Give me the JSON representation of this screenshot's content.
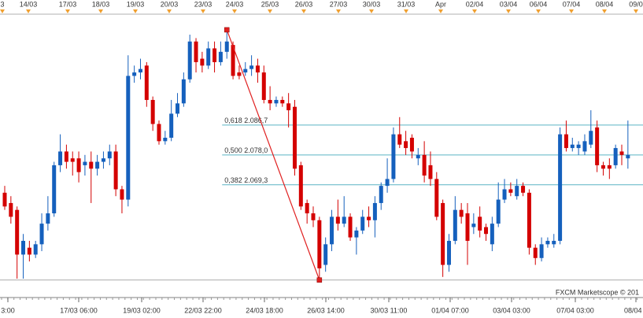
{
  "chart_data": {
    "type": "candlestick",
    "ylim": [
      2036.5,
      2118.5
    ],
    "up_color": "#1560bd",
    "down_color": "#d40000",
    "top_axis_labels": [
      "3",
      "14/03",
      "17/03",
      "18/03",
      "19/03",
      "20/03",
      "23/03",
      "24/03",
      "25/03",
      "26/03",
      "27/03",
      "30/03",
      "31/03",
      "Apr",
      "02/04",
      "03/04",
      "06/04",
      "07/04",
      "08/04",
      "09/0"
    ],
    "bottom_axis_labels": [
      "3:00",
      "17/03 06:00",
      "19/03 02:00",
      "22/03 22:00",
      "24/03 18:00",
      "26/03 14:00",
      "30/03 11:00",
      "01/04 07:00",
      "03/04 03:00",
      "07/04 03:00",
      "08/04 2"
    ],
    "watermark": "FXCM Marketscope © 201",
    "fibonacci": {
      "color": "#5ab4c4",
      "line_color": "#e02020",
      "high": 2114.4,
      "low": 2041.6,
      "levels": [
        {
          "label": "0,618 2.086,7",
          "value": 2086.7
        },
        {
          "label": "0,500 2.078,0",
          "value": 2078.0
        },
        {
          "label": "0,382 2.069,3",
          "value": 2069.3
        }
      ]
    },
    "open": [
      2067,
      2064,
      2062,
      2049,
      2051,
      2049,
      2052,
      2058,
      2061,
      2075,
      2079,
      2077,
      2077,
      2075,
      2076,
      2074,
      2076,
      2077,
      2079,
      2068,
      2065,
      2101,
      2102,
      2104,
      2094,
      2087,
      2082,
      2083,
      2090,
      2093,
      2100,
      2111,
      2106,
      2104,
      2109,
      2105,
      2108,
      2110,
      2102,
      2102,
      2103,
      2104,
      2102,
      2094,
      2093,
      2094,
      2093,
      2092,
      2075,
      2064,
      2061,
      2059,
      2046,
      2052,
      2060,
      2058,
      2060,
      2054,
      2056,
      2060,
      2059,
      2064,
      2069,
      2071,
      2084,
      2082,
      2083,
      2077,
      2078,
      2075,
      2071,
      2064,
      2046,
      2053,
      2062,
      2061,
      2057,
      2060,
      2057,
      2052,
      2058,
      2065,
      2068,
      2066,
      2069,
      2067,
      2051,
      2048,
      2052,
      2052,
      2053,
      2084,
      2080,
      2080,
      2079,
      2081,
      2086,
      2075,
      2075,
      2075,
      2079,
      2077
    ],
    "high": [
      2069,
      2066,
      2063,
      2055,
      2053,
      2053,
      2061,
      2066,
      2076,
      2084,
      2081,
      2079,
      2079,
      2078,
      2079,
      2078,
      2079,
      2081,
      2081,
      2069,
      2107,
      2104,
      2106,
      2105,
      2095,
      2088,
      2085,
      2094,
      2096,
      2102,
      2113,
      2112,
      2108,
      2111,
      2111,
      2111,
      2114.4,
      2111,
      2104,
      2105,
      2107,
      2106,
      2104,
      2098,
      2095,
      2095,
      2096,
      2094,
      2076,
      2065,
      2063,
      2060,
      2054,
      2062,
      2065,
      2066,
      2061,
      2057,
      2062,
      2063,
      2066,
      2070,
      2077,
      2086,
      2089,
      2085,
      2084,
      2080,
      2082,
      2079,
      2073,
      2065,
      2055,
      2066,
      2064,
      2064,
      2061,
      2063,
      2058,
      2060,
      2070,
      2071,
      2070,
      2071,
      2070,
      2068,
      2052,
      2054,
      2054,
      2055,
      2086,
      2088,
      2083,
      2082,
      2084,
      2091,
      2088,
      2076,
      2077,
      2081,
      2081,
      2088
    ],
    "low": [
      2062,
      2058,
      2042,
      2042,
      2047,
      2048,
      2050,
      2056,
      2060,
      2073,
      2074,
      2072,
      2070,
      2072,
      2064,
      2072,
      2074,
      2075,
      2066,
      2061,
      2063,
      2099,
      2100,
      2092,
      2085,
      2081,
      2081,
      2082,
      2089,
      2092,
      2099,
      2102,
      2102,
      2103,
      2102,
      2104,
      2106,
      2100,
      2100,
      2101,
      2101,
      2099,
      2093,
      2091,
      2092,
      2092,
      2086,
      2072,
      2062,
      2058,
      2057,
      2041.6,
      2044,
      2050,
      2056,
      2057,
      2053,
      2049,
      2055,
      2057,
      2054,
      2062,
      2067,
      2070,
      2080,
      2078,
      2077,
      2075,
      2070,
      2069,
      2059,
      2042.5,
      2044,
      2052,
      2058,
      2046,
      2055,
      2054,
      2053,
      2050,
      2057,
      2064,
      2066,
      2065,
      2066,
      2049,
      2046,
      2047,
      2051,
      2051,
      2052,
      2079,
      2079,
      2078,
      2078,
      2080,
      2073,
      2072,
      2071,
      2074,
      2075,
      2074
    ],
    "close": [
      2063,
      2060,
      2049,
      2053,
      2049,
      2052,
      2058,
      2061,
      2075,
      2079,
      2076,
      2076,
      2073,
      2076,
      2074,
      2076,
      2077,
      2079,
      2068,
      2065,
      2101,
      2102,
      2103,
      2094,
      2087,
      2082,
      2083,
      2090,
      2093,
      2100,
      2111,
      2105,
      2104,
      2109,
      2105,
      2108,
      2111,
      2101,
      2101,
      2103,
      2104,
      2102,
      2094,
      2093,
      2094,
      2093,
      2091,
      2074,
      2063,
      2061,
      2059,
      2045,
      2052,
      2060,
      2058,
      2060,
      2054,
      2056,
      2060,
      2059,
      2064,
      2069,
      2071,
      2084,
      2081,
      2080,
      2079,
      2078,
      2072,
      2071,
      2060,
      2046,
      2053,
      2062,
      2060,
      2053,
      2058,
      2056,
      2055,
      2058,
      2065,
      2068,
      2067,
      2069,
      2067,
      2051,
      2048,
      2052,
      2053,
      2053,
      2084,
      2080,
      2081,
      2081,
      2082,
      2085,
      2075,
      2074,
      2074,
      2080,
      2078,
      2078
    ]
  }
}
